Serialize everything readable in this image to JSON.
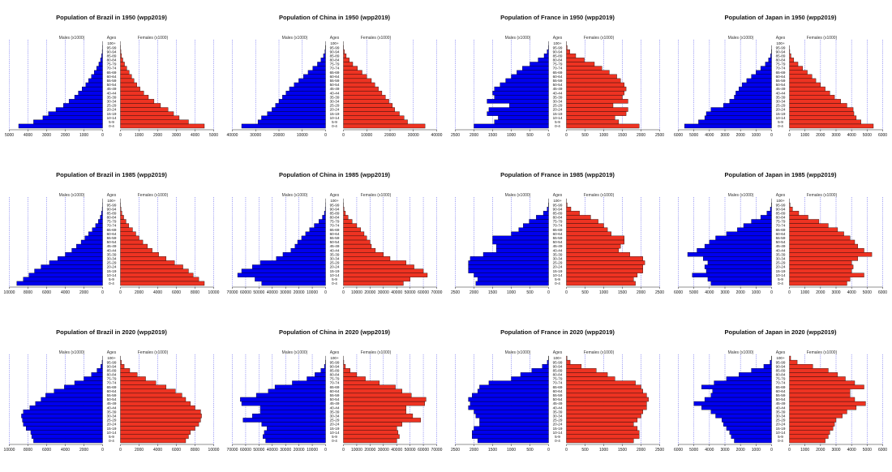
{
  "colors": {
    "males": "#0000ee",
    "females": "#ee3322",
    "grid": "#6666ee"
  },
  "age_groups": [
    "0-4",
    "5-9",
    "10-14",
    "15-19",
    "20-24",
    "25-29",
    "30-34",
    "35-39",
    "40-44",
    "45-49",
    "50-54",
    "55-59",
    "60-64",
    "65-69",
    "70-74",
    "75-79",
    "80-84",
    "85-89",
    "90-94",
    "95-99",
    "100+"
  ],
  "labels": {
    "ages": "Ages",
    "males": "Males (x1000)",
    "females": "Females (x1000)"
  },
  "chart_data": [
    {
      "type": "bar",
      "orientation": "horizontal",
      "title": "Population of Brazil in 1950 (wpp2019)",
      "xlim": [
        -5000,
        5000
      ],
      "xticks": [
        -5000,
        -4000,
        -3000,
        -2000,
        -1000,
        0,
        1000,
        2000,
        3000,
        4000,
        5000
      ],
      "xtick_labels": [
        "5000",
        "4000",
        "3000",
        "2000",
        "1000",
        "0",
        "1000",
        "2000",
        "3000",
        "4000",
        "5000"
      ],
      "males": [
        4500,
        3700,
        3200,
        2900,
        2500,
        2100,
        1800,
        1500,
        1300,
        1100,
        900,
        750,
        600,
        450,
        320,
        200,
        110,
        50,
        20,
        6,
        1
      ],
      "females": [
        4500,
        3650,
        3150,
        2850,
        2550,
        2150,
        1800,
        1500,
        1250,
        1050,
        880,
        730,
        600,
        470,
        340,
        220,
        130,
        60,
        25,
        7,
        1
      ]
    },
    {
      "type": "bar",
      "orientation": "horizontal",
      "title": "Population of China in 1950 (wpp2019)",
      "xlim": [
        -40000,
        40000
      ],
      "xticks": [
        -40000,
        -30000,
        -20000,
        -10000,
        0,
        10000,
        20000,
        30000,
        40000
      ],
      "xtick_labels": [
        "40000",
        "30000",
        "20000",
        "10000",
        "0",
        "10000",
        "20000",
        "30000",
        "40000"
      ],
      "males": [
        36000,
        29000,
        27500,
        25000,
        23000,
        21500,
        20000,
        18500,
        17000,
        15500,
        13500,
        11500,
        9500,
        7500,
        5500,
        3500,
        2000,
        900,
        300,
        80,
        10
      ],
      "females": [
        35000,
        27500,
        26000,
        24000,
        22000,
        21000,
        19500,
        18000,
        16500,
        15000,
        13500,
        12000,
        10000,
        8000,
        6000,
        4000,
        2500,
        1200,
        400,
        100,
        15
      ]
    },
    {
      "type": "bar",
      "orientation": "horizontal",
      "title": "Population of France in 1950 (wpp2019)",
      "xlim": [
        -2500,
        2500
      ],
      "xticks": [
        -2500,
        -2000,
        -1500,
        -1000,
        -500,
        0,
        500,
        1000,
        1500,
        2000,
        2500
      ],
      "xtick_labels": [
        "2500",
        "2000",
        "1500",
        "1000",
        "500",
        "0",
        "500",
        "1000",
        "1500",
        "2000",
        "2500"
      ],
      "males": [
        2000,
        1450,
        1350,
        1650,
        1600,
        1050,
        1650,
        1450,
        1500,
        1450,
        1300,
        1150,
        1000,
        850,
        700,
        500,
        280,
        120,
        40,
        8,
        1
      ],
      "females": [
        1950,
        1400,
        1300,
        1600,
        1650,
        1250,
        1650,
        1500,
        1550,
        1600,
        1550,
        1450,
        1350,
        1150,
        950,
        750,
        480,
        250,
        90,
        20,
        2
      ]
    },
    {
      "type": "bar",
      "orientation": "horizontal",
      "title": "Population of Japan in 1950 (wpp2019)",
      "xlim": [
        -6000,
        6000
      ],
      "xticks": [
        -6000,
        -5000,
        -4000,
        -3000,
        -2000,
        -1000,
        0,
        1000,
        2000,
        3000,
        4000,
        5000,
        6000
      ],
      "xtick_labels": [
        "6000",
        "5000",
        "4000",
        "3000",
        "2000",
        "1000",
        "0",
        "1000",
        "2000",
        "3000",
        "4000",
        "5000",
        "6000"
      ],
      "males": [
        5600,
        4700,
        4300,
        4200,
        3900,
        3100,
        2700,
        2400,
        2300,
        2100,
        1900,
        1600,
        1300,
        1000,
        700,
        400,
        200,
        60,
        15,
        3,
        0
      ],
      "females": [
        5400,
        4600,
        4300,
        4150,
        4100,
        3700,
        3300,
        2900,
        2600,
        2300,
        2000,
        1700,
        1450,
        1150,
        850,
        550,
        280,
        100,
        25,
        5,
        0
      ]
    },
    {
      "type": "bar",
      "orientation": "horizontal",
      "title": "Population of Brazil in 1985 (wpp2019)",
      "xlim": [
        -10000,
        10000
      ],
      "xticks": [
        -10000,
        -8000,
        -6000,
        -4000,
        -2000,
        0,
        2000,
        4000,
        6000,
        8000,
        10000
      ],
      "xtick_labels": [
        "10000",
        "8000",
        "6000",
        "4000",
        "2000",
        "0",
        "2000",
        "4000",
        "6000",
        "8000",
        "10000"
      ],
      "males": [
        9200,
        8500,
        7900,
        7300,
        6600,
        5700,
        4800,
        4000,
        3300,
        2800,
        2300,
        1900,
        1500,
        1100,
        750,
        450,
        250,
        120,
        40,
        10,
        2
      ],
      "females": [
        9000,
        8400,
        7800,
        7300,
        6700,
        5800,
        4900,
        4100,
        3400,
        2900,
        2400,
        2000,
        1650,
        1300,
        900,
        600,
        350,
        160,
        60,
        15,
        3
      ]
    },
    {
      "type": "bar",
      "orientation": "horizontal",
      "title": "Population of China in 1985 (wpp2019)",
      "xlim": [
        -70000,
        70000
      ],
      "xticks": [
        -70000,
        -60000,
        -50000,
        -40000,
        -30000,
        -20000,
        -10000,
        0,
        10000,
        20000,
        30000,
        40000,
        50000,
        60000,
        70000
      ],
      "xtick_labels": [
        "70000",
        "60000",
        "50000",
        "40000",
        "30000",
        "20000",
        "10000",
        "0",
        "10000",
        "20000",
        "30000",
        "40000",
        "50000",
        "60000",
        "70000"
      ],
      "males": [
        48000,
        53000,
        66000,
        63000,
        55000,
        49000,
        37000,
        32000,
        26000,
        23000,
        21000,
        18000,
        15000,
        12000,
        8500,
        5000,
        2400,
        900,
        250,
        50,
        5
      ],
      "females": [
        45000,
        50000,
        63000,
        60000,
        53000,
        47000,
        35000,
        30000,
        24000,
        21000,
        20000,
        17500,
        15500,
        13000,
        10000,
        6500,
        3500,
        1500,
        450,
        90,
        10
      ]
    },
    {
      "type": "bar",
      "orientation": "horizontal",
      "title": "Population of France in 1985 (wpp2019)",
      "xlim": [
        -2500,
        2500
      ],
      "xticks": [
        -2500,
        -2000,
        -1500,
        -1000,
        -500,
        0,
        500,
        1000,
        1500,
        2000,
        2500
      ],
      "xtick_labels": [
        "2500",
        "2000",
        "1500",
        "1000",
        "500",
        "0",
        "500",
        "1000",
        "1500",
        "2000",
        "2500"
      ],
      "males": [
        1950,
        1900,
        2000,
        2150,
        2150,
        2150,
        2100,
        1750,
        1400,
        1400,
        1500,
        1500,
        1000,
        800,
        680,
        520,
        330,
        140,
        40,
        6,
        1
      ],
      "females": [
        1850,
        1800,
        1900,
        2050,
        2050,
        2100,
        2050,
        1700,
        1400,
        1450,
        1550,
        1550,
        1200,
        1100,
        1000,
        850,
        650,
        350,
        120,
        20,
        2
      ]
    },
    {
      "type": "bar",
      "orientation": "horizontal",
      "title": "Population of Japan in 1985 (wpp2019)",
      "xlim": [
        -6000,
        6000
      ],
      "xticks": [
        -6000,
        -5000,
        -4000,
        -3000,
        -2000,
        -1000,
        0,
        1000,
        2000,
        3000,
        4000,
        5000,
        6000
      ],
      "xtick_labels": [
        "6000",
        "5000",
        "4000",
        "3000",
        "2000",
        "1000",
        "0",
        "1000",
        "2000",
        "3000",
        "4000",
        "5000",
        "6000"
      ],
      "males": [
        3900,
        4100,
        5100,
        4200,
        4300,
        4100,
        4400,
        5400,
        4800,
        4300,
        4000,
        3600,
        2900,
        2200,
        1800,
        1300,
        700,
        300,
        80,
        15,
        1
      ],
      "females": [
        3700,
        3900,
        4800,
        4000,
        4100,
        4000,
        4400,
        5300,
        4800,
        4400,
        4200,
        3900,
        3500,
        3100,
        2500,
        1900,
        1200,
        600,
        200,
        40,
        3
      ]
    },
    {
      "type": "bar",
      "orientation": "horizontal",
      "title": "Population of Brazil in 2020 (wpp2019)",
      "xlim": [
        -10000,
        10000
      ],
      "xticks": [
        -10000,
        -8000,
        -6000,
        -4000,
        -2000,
        0,
        2000,
        4000,
        6000,
        8000,
        10000
      ],
      "xtick_labels": [
        "10000",
        "8000",
        "6000",
        "4000",
        "2000",
        "0",
        "2000",
        "4000",
        "6000",
        "8000",
        "10000"
      ],
      "males": [
        7400,
        7600,
        7700,
        8200,
        8500,
        8600,
        8700,
        8500,
        7800,
        7200,
        6600,
        6100,
        5200,
        4100,
        3000,
        2000,
        1200,
        600,
        200,
        50,
        5
      ],
      "females": [
        7000,
        7300,
        7500,
        8000,
        8400,
        8600,
        8700,
        8600,
        8000,
        7500,
        7000,
        6600,
        5900,
        4900,
        3800,
        2700,
        1800,
        1000,
        400,
        100,
        10
      ]
    },
    {
      "type": "bar",
      "orientation": "horizontal",
      "title": "Population of China in 2020 (wpp2019)",
      "xlim": [
        -70000,
        70000
      ],
      "xticks": [
        -70000,
        -60000,
        -50000,
        -40000,
        -30000,
        -20000,
        -10000,
        0,
        10000,
        20000,
        30000,
        40000,
        50000,
        60000,
        70000
      ],
      "xtick_labels": [
        "70000",
        "60000",
        "50000",
        "40000",
        "30000",
        "20000",
        "10000",
        "0",
        "10000",
        "20000",
        "30000",
        "40000",
        "50000",
        "60000",
        "70000"
      ],
      "males": [
        45000,
        47000,
        46000,
        44000,
        48000,
        62000,
        55000,
        49000,
        49000,
        63000,
        64000,
        52000,
        43000,
        38000,
        25000,
        14000,
        8000,
        3500,
        900,
        150,
        20
      ],
      "females": [
        40000,
        42000,
        41000,
        40000,
        44000,
        58000,
        52000,
        47000,
        47000,
        61000,
        62000,
        51000,
        44000,
        39000,
        27000,
        16500,
        10000,
        5000,
        1500,
        300,
        40
      ]
    },
    {
      "type": "bar",
      "orientation": "horizontal",
      "title": "Population of France in 2020 (wpp2019)",
      "xlim": [
        -2500,
        2500
      ],
      "xticks": [
        -2500,
        -2000,
        -1500,
        -1000,
        -500,
        0,
        500,
        1000,
        1500,
        2000,
        2500
      ],
      "xtick_labels": [
        "2500",
        "2000",
        "1500",
        "1000",
        "500",
        "0",
        "500",
        "1000",
        "1500",
        "2000",
        "2500"
      ],
      "males": [
        1900,
        2050,
        2050,
        2000,
        1850,
        1850,
        1950,
        2000,
        2150,
        2100,
        2150,
        2050,
        1900,
        1850,
        1600,
        1000,
        750,
        450,
        170,
        35,
        4
      ],
      "females": [
        1800,
        1950,
        1950,
        1900,
        1800,
        1900,
        2000,
        2050,
        2150,
        2150,
        2200,
        2150,
        2050,
        2000,
        1850,
        1300,
        1100,
        800,
        400,
        100,
        15
      ]
    },
    {
      "type": "bar",
      "orientation": "horizontal",
      "title": "Population of Japan in 2020 (wpp2019)",
      "xlim": [
        -6000,
        6000
      ],
      "xticks": [
        -6000,
        -5000,
        -4000,
        -3000,
        -2000,
        -1000,
        0,
        1000,
        2000,
        3000,
        4000,
        5000,
        6000
      ],
      "xtick_labels": [
        "6000",
        "5000",
        "4000",
        "3000",
        "2000",
        "1000",
        "0",
        "1000",
        "2000",
        "3000",
        "4000",
        "5000",
        "6000"
      ],
      "males": [
        2400,
        2600,
        2700,
        2900,
        3100,
        3200,
        3600,
        3900,
        4500,
        5000,
        4300,
        3900,
        3800,
        4500,
        3700,
        2900,
        2100,
        1300,
        500,
        100,
        10
      ],
      "females": [
        2300,
        2500,
        2600,
        2800,
        2900,
        3000,
        3400,
        3700,
        4300,
        4900,
        4200,
        3900,
        3900,
        4800,
        4200,
        3600,
        3100,
        2500,
        1500,
        500,
        80
      ]
    }
  ]
}
